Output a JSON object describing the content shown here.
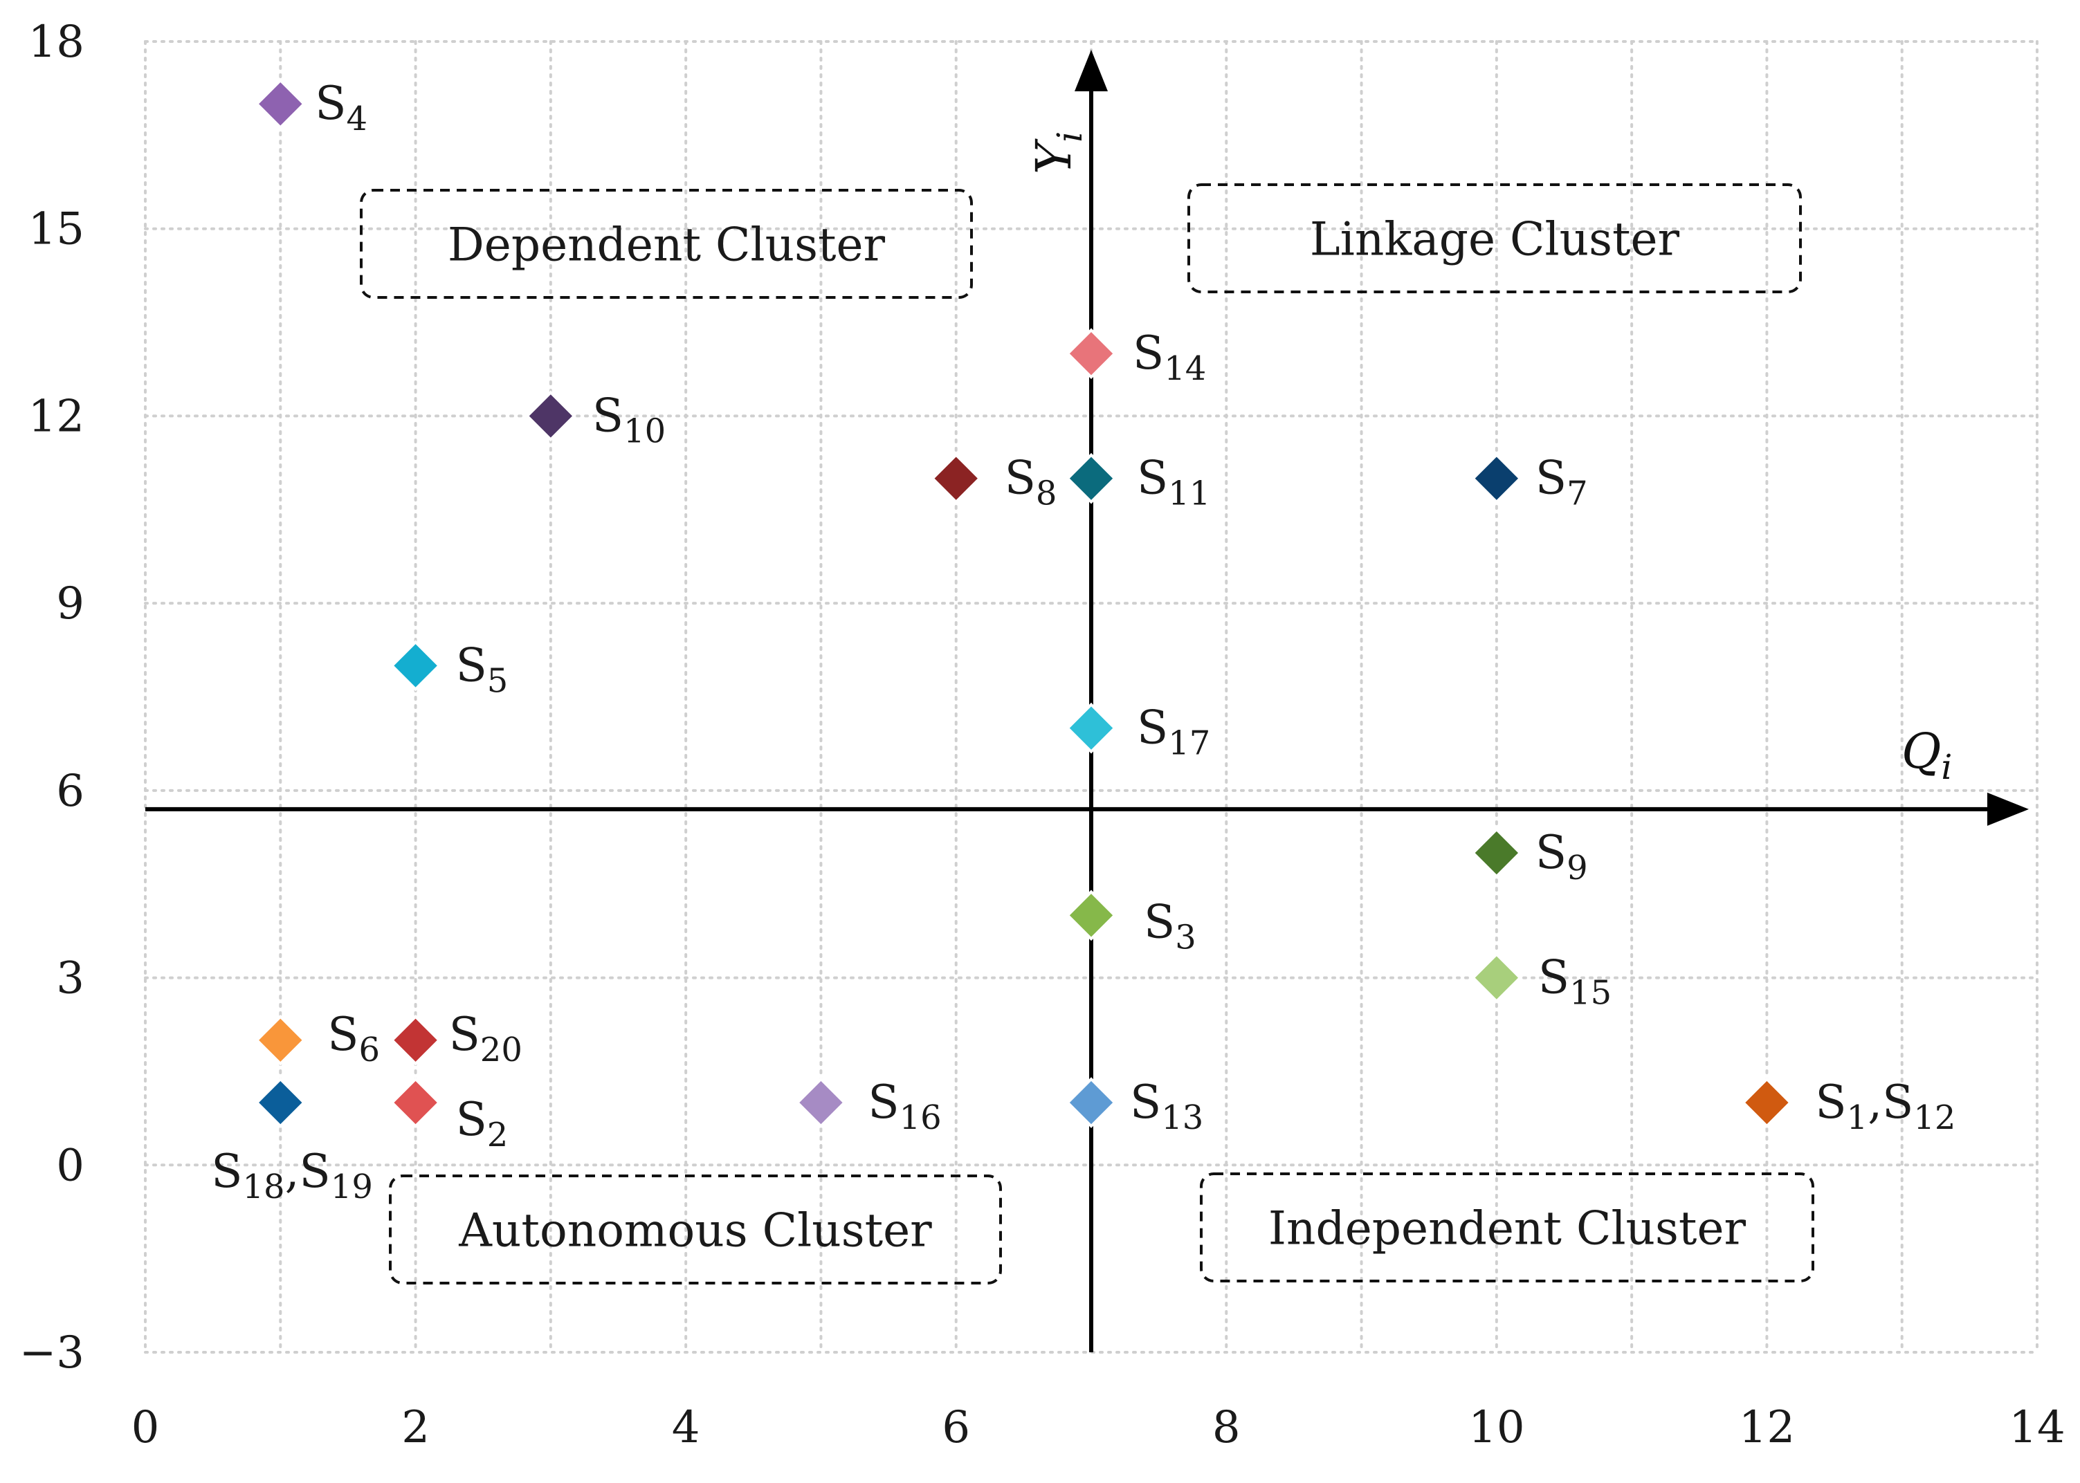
{
  "chart_data": {
    "type": "scatter",
    "title": "",
    "xlim": [
      0,
      14
    ],
    "ylim": [
      -3,
      18
    ],
    "x_ticks": [
      "0",
      "2",
      "4",
      "6",
      "8",
      "10",
      "12",
      "14"
    ],
    "y_ticks": [
      "−3",
      "0",
      "3",
      "6",
      "9",
      "12",
      "15",
      "18"
    ],
    "grid": true,
    "quadrant_origin": {
      "x": 7,
      "y": 5.7
    },
    "x_axis_label": {
      "main": "Q",
      "sub": "i"
    },
    "y_axis_label": {
      "main": "Y",
      "sub": "i"
    },
    "clusters": [
      {
        "text": "Dependent Cluster",
        "position": "top-left"
      },
      {
        "text": "Linkage Cluster",
        "position": "top-right"
      },
      {
        "text": "Autonomous Cluster",
        "position": "bottom-left"
      },
      {
        "text": "Independent Cluster",
        "position": "bottom-right"
      }
    ],
    "points": [
      {
        "id": "S4",
        "x": 1,
        "y": 17,
        "label": [
          {
            "t": "S"
          },
          {
            "t": "4",
            "sub": true
          }
        ],
        "color": "#8e62b0"
      },
      {
        "id": "S10",
        "x": 3,
        "y": 12,
        "label": [
          {
            "t": "S"
          },
          {
            "t": "10",
            "sub": true
          }
        ],
        "color": "#4e3566"
      },
      {
        "id": "S8",
        "x": 6,
        "y": 11,
        "label": [
          {
            "t": "S"
          },
          {
            "t": "8",
            "sub": true
          }
        ],
        "color": "#8b2323"
      },
      {
        "id": "S14",
        "x": 7,
        "y": 13,
        "label": [
          {
            "t": "S"
          },
          {
            "t": "14",
            "sub": true
          }
        ],
        "color": "#e8747a"
      },
      {
        "id": "S11",
        "x": 7,
        "y": 11,
        "label": [
          {
            "t": "S"
          },
          {
            "t": "11",
            "sub": true
          }
        ],
        "color": "#0b6b7d"
      },
      {
        "id": "S7",
        "x": 10,
        "y": 11,
        "label": [
          {
            "t": "S"
          },
          {
            "t": "7",
            "sub": true
          }
        ],
        "color": "#0a3f6e"
      },
      {
        "id": "S5",
        "x": 2,
        "y": 8,
        "label": [
          {
            "t": "S"
          },
          {
            "t": "5",
            "sub": true
          }
        ],
        "color": "#14aed0"
      },
      {
        "id": "S17",
        "x": 7,
        "y": 7,
        "label": [
          {
            "t": "S"
          },
          {
            "t": "17",
            "sub": true
          }
        ],
        "color": "#2ec0d8"
      },
      {
        "id": "S9",
        "x": 10,
        "y": 5,
        "label": [
          {
            "t": "S"
          },
          {
            "t": "9",
            "sub": true
          }
        ],
        "color": "#4a7a2a"
      },
      {
        "id": "S3",
        "x": 7,
        "y": 4,
        "label": [
          {
            "t": "S"
          },
          {
            "t": "3",
            "sub": true
          }
        ],
        "color": "#86b84a"
      },
      {
        "id": "S15",
        "x": 10,
        "y": 3,
        "label": [
          {
            "t": "S"
          },
          {
            "t": "15",
            "sub": true
          }
        ],
        "color": "#a8cf7c"
      },
      {
        "id": "S6",
        "x": 1,
        "y": 2,
        "label": [
          {
            "t": "S"
          },
          {
            "t": "6",
            "sub": true
          }
        ],
        "color": "#f9963a"
      },
      {
        "id": "S20",
        "x": 2,
        "y": 2,
        "label": [
          {
            "t": "S"
          },
          {
            "t": "20",
            "sub": true
          }
        ],
        "color": "#c23434"
      },
      {
        "id": "S18,S19",
        "x": 1,
        "y": 1,
        "label": [
          {
            "t": "S"
          },
          {
            "t": "18",
            "sub": true
          },
          {
            "t": ",S"
          },
          {
            "t": "19",
            "sub": true
          }
        ],
        "color": "#0b5e9a"
      },
      {
        "id": "S2",
        "x": 2,
        "y": 1,
        "label": [
          {
            "t": "S"
          },
          {
            "t": "2",
            "sub": true
          }
        ],
        "color": "#e05252"
      },
      {
        "id": "S16",
        "x": 5,
        "y": 1,
        "label": [
          {
            "t": "S"
          },
          {
            "t": "16",
            "sub": true
          }
        ],
        "color": "#a68bc4"
      },
      {
        "id": "S13",
        "x": 7,
        "y": 1,
        "label": [
          {
            "t": "S"
          },
          {
            "t": "13",
            "sub": true
          }
        ],
        "color": "#5e9bd4"
      },
      {
        "id": "S1,S12",
        "x": 12,
        "y": 1,
        "label": [
          {
            "t": "S"
          },
          {
            "t": "1",
            "sub": true
          },
          {
            "t": ",S"
          },
          {
            "t": "12",
            "sub": true
          }
        ],
        "color": "#d05a10"
      }
    ]
  }
}
